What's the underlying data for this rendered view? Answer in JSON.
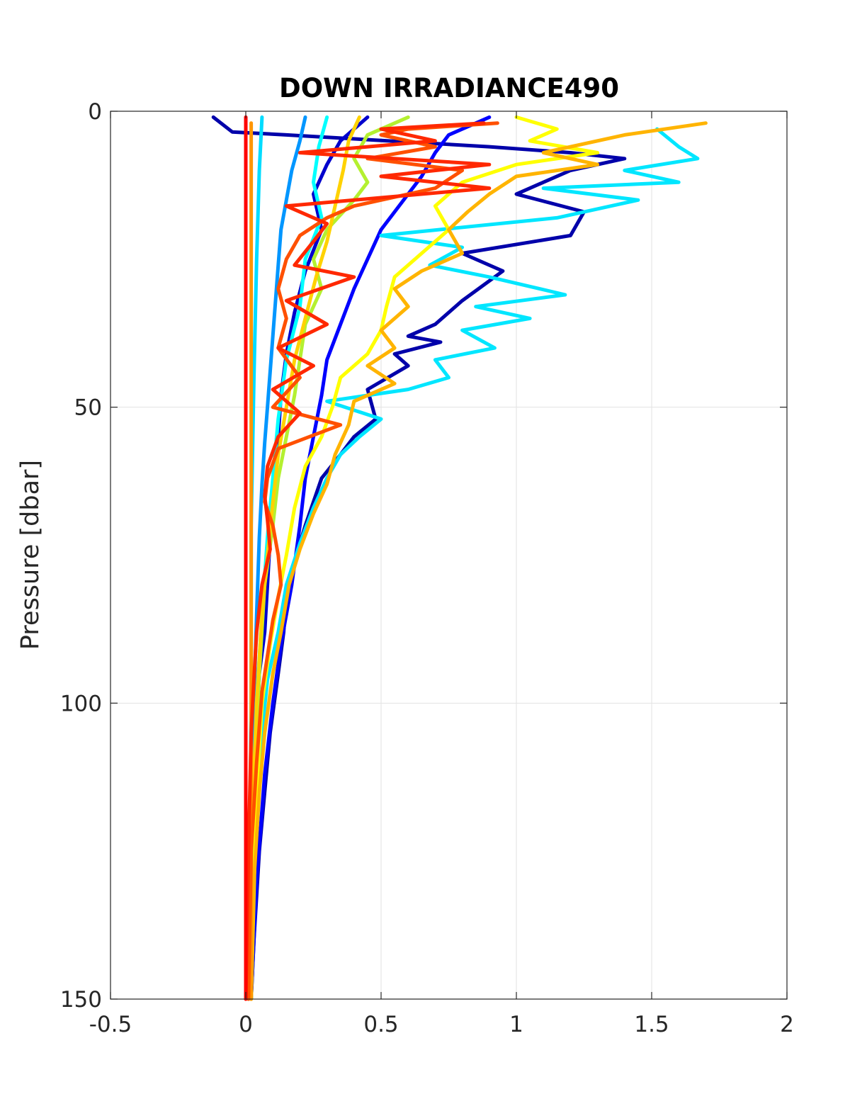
{
  "chart_data": {
    "type": "line",
    "title": "DOWN IRRADIANCE490",
    "xlabel": "",
    "ylabel": "Pressure [dbar]",
    "xlim": [
      -0.5,
      2
    ],
    "ylim": [
      0,
      150
    ],
    "y_reversed": true,
    "x_ticks": [
      "-0.5",
      "0",
      "0.5",
      "1",
      "1.5",
      "2"
    ],
    "y_ticks": [
      "0",
      "50",
      "100",
      "150"
    ],
    "grid": true,
    "series": [
      {
        "color": "#0000aa",
        "points": [
          [
            -0.12,
            1
          ],
          [
            -0.05,
            3.5
          ],
          [
            0.15,
            4
          ],
          [
            0.9,
            6
          ],
          [
            1.2,
            7
          ],
          [
            1.4,
            8
          ],
          [
            1.2,
            10
          ],
          [
            1.1,
            12
          ],
          [
            1.0,
            14
          ],
          [
            1.25,
            17
          ],
          [
            1.2,
            21
          ],
          [
            0.8,
            24
          ],
          [
            0.95,
            27
          ],
          [
            0.8,
            32
          ],
          [
            0.7,
            36
          ],
          [
            0.6,
            38
          ],
          [
            0.72,
            39
          ],
          [
            0.55,
            41
          ],
          [
            0.6,
            43
          ],
          [
            0.45,
            47
          ],
          [
            0.48,
            52
          ],
          [
            0.4,
            55
          ],
          [
            0.35,
            58
          ],
          [
            0.28,
            62
          ],
          [
            0.25,
            66
          ],
          [
            0.22,
            70
          ],
          [
            0.18,
            76
          ],
          [
            0.15,
            82
          ],
          [
            0.14,
            88
          ],
          [
            0.12,
            95
          ],
          [
            0.09,
            105
          ],
          [
            0.07,
            115
          ],
          [
            0.05,
            125
          ],
          [
            0.03,
            140
          ],
          [
            0.02,
            150
          ]
        ]
      },
      {
        "color": "#0000cd",
        "points": [
          [
            0.45,
            1
          ],
          [
            0.35,
            5
          ],
          [
            0.3,
            9
          ],
          [
            0.25,
            14
          ],
          [
            0.28,
            20
          ],
          [
            0.22,
            27
          ],
          [
            0.18,
            34
          ],
          [
            0.15,
            41
          ],
          [
            0.13,
            48
          ],
          [
            0.12,
            55
          ],
          [
            0.11,
            61
          ],
          [
            0.1,
            66
          ],
          [
            0.09,
            72
          ],
          [
            0.08,
            80
          ],
          [
            0.07,
            88
          ],
          [
            0.05,
            95
          ],
          [
            0.04,
            105
          ],
          [
            0.03,
            120
          ],
          [
            0.02,
            150
          ]
        ]
      },
      {
        "color": "#0000ff",
        "points": [
          [
            0.9,
            1
          ],
          [
            0.75,
            4
          ],
          [
            0.7,
            7
          ],
          [
            0.65,
            11
          ],
          [
            0.6,
            14
          ],
          [
            0.55,
            17
          ],
          [
            0.5,
            20
          ],
          [
            0.45,
            25
          ],
          [
            0.4,
            30
          ],
          [
            0.35,
            36
          ],
          [
            0.3,
            42
          ],
          [
            0.28,
            48
          ],
          [
            0.25,
            55
          ],
          [
            0.22,
            62
          ],
          [
            0.2,
            70
          ],
          [
            0.17,
            80
          ],
          [
            0.13,
            90
          ],
          [
            0.1,
            100
          ],
          [
            0.07,
            112
          ],
          [
            0.04,
            130
          ],
          [
            0.02,
            150
          ]
        ]
      },
      {
        "color": "#0096ff",
        "points": [
          [
            0.22,
            1
          ],
          [
            0.2,
            5
          ],
          [
            0.17,
            10
          ],
          [
            0.15,
            15
          ],
          [
            0.13,
            20
          ],
          [
            0.12,
            26
          ],
          [
            0.11,
            32
          ],
          [
            0.1,
            38
          ],
          [
            0.09,
            44
          ],
          [
            0.08,
            50
          ],
          [
            0.07,
            56
          ],
          [
            0.06,
            63
          ],
          [
            0.05,
            72
          ],
          [
            0.04,
            85
          ],
          [
            0.03,
            100
          ],
          [
            0.02,
            125
          ],
          [
            0.01,
            150
          ]
        ]
      },
      {
        "color": "#00dcff",
        "points": [
          [
            0.06,
            1
          ],
          [
            0.05,
            10
          ],
          [
            0.04,
            25
          ],
          [
            0.03,
            45
          ],
          [
            0.02,
            70
          ],
          [
            0.02,
            100
          ],
          [
            0.01,
            150
          ]
        ]
      },
      {
        "color": "#00e6ff",
        "points": [
          [
            1.52,
            3
          ],
          [
            1.6,
            6
          ],
          [
            1.67,
            8
          ],
          [
            1.4,
            10
          ],
          [
            1.6,
            12
          ],
          [
            1.1,
            13
          ],
          [
            1.45,
            15
          ],
          [
            1.15,
            18
          ],
          [
            0.5,
            21
          ],
          [
            0.8,
            23
          ],
          [
            0.68,
            26
          ],
          [
            0.9,
            28
          ],
          [
            1.18,
            31
          ],
          [
            0.85,
            33
          ],
          [
            1.05,
            35
          ],
          [
            0.8,
            37
          ],
          [
            0.92,
            40
          ],
          [
            0.7,
            42
          ],
          [
            0.75,
            45
          ],
          [
            0.6,
            47
          ],
          [
            0.3,
            49
          ],
          [
            0.5,
            52
          ],
          [
            0.42,
            55
          ],
          [
            0.35,
            58
          ],
          [
            0.3,
            62
          ],
          [
            0.25,
            67
          ],
          [
            0.2,
            73
          ],
          [
            0.15,
            80
          ],
          [
            0.12,
            88
          ],
          [
            0.08,
            96
          ],
          [
            0.06,
            105
          ],
          [
            0.04,
            115
          ],
          [
            0.03,
            130
          ],
          [
            0.02,
            150
          ]
        ]
      },
      {
        "color": "#00ffff",
        "points": [
          [
            0.3,
            1
          ],
          [
            0.27,
            6
          ],
          [
            0.25,
            12
          ],
          [
            0.28,
            18
          ],
          [
            0.22,
            25
          ],
          [
            0.2,
            33
          ],
          [
            0.15,
            42
          ],
          [
            0.12,
            52
          ],
          [
            0.1,
            62
          ],
          [
            0.08,
            72
          ],
          [
            0.06,
            85
          ],
          [
            0.04,
            100
          ],
          [
            0.03,
            120
          ],
          [
            0.02,
            150
          ]
        ]
      },
      {
        "color": "#b4f030",
        "points": [
          [
            0.6,
            1
          ],
          [
            0.45,
            4
          ],
          [
            0.4,
            8
          ],
          [
            0.45,
            12
          ],
          [
            0.4,
            15
          ],
          [
            0.3,
            20
          ],
          [
            0.25,
            25
          ],
          [
            0.28,
            30
          ],
          [
            0.22,
            36
          ],
          [
            0.2,
            42
          ],
          [
            0.18,
            48
          ],
          [
            0.15,
            55
          ],
          [
            0.12,
            62
          ],
          [
            0.1,
            70
          ],
          [
            0.07,
            80
          ],
          [
            0.05,
            95
          ],
          [
            0.03,
            115
          ],
          [
            0.02,
            150
          ]
        ]
      },
      {
        "color": "#ffff00",
        "points": [
          [
            1.0,
            1
          ],
          [
            1.15,
            3
          ],
          [
            1.05,
            5
          ],
          [
            1.3,
            7
          ],
          [
            1.0,
            9
          ],
          [
            0.8,
            12
          ],
          [
            0.7,
            16
          ],
          [
            0.75,
            20
          ],
          [
            0.65,
            24
          ],
          [
            0.55,
            28
          ],
          [
            0.52,
            33
          ],
          [
            0.5,
            37
          ],
          [
            0.45,
            41
          ],
          [
            0.35,
            45
          ],
          [
            0.32,
            50
          ],
          [
            0.28,
            55
          ],
          [
            0.22,
            60
          ],
          [
            0.18,
            67
          ],
          [
            0.15,
            75
          ],
          [
            0.12,
            82
          ],
          [
            0.09,
            90
          ],
          [
            0.06,
            100
          ],
          [
            0.04,
            115
          ],
          [
            0.02,
            150
          ]
        ]
      },
      {
        "color": "#ffd200",
        "points": [
          [
            0.42,
            1
          ],
          [
            0.38,
            5
          ],
          [
            0.36,
            10
          ],
          [
            0.33,
            16
          ],
          [
            0.3,
            22
          ],
          [
            0.26,
            28
          ],
          [
            0.22,
            35
          ],
          [
            0.18,
            42
          ],
          [
            0.15,
            50
          ],
          [
            0.12,
            58
          ],
          [
            0.1,
            66
          ],
          [
            0.08,
            75
          ],
          [
            0.06,
            85
          ],
          [
            0.04,
            100
          ],
          [
            0.02,
            125
          ],
          [
            0.01,
            150
          ]
        ]
      },
      {
        "color": "#ffb400",
        "points": [
          [
            1.7,
            2
          ],
          [
            1.4,
            4
          ],
          [
            1.1,
            7
          ],
          [
            1.3,
            9
          ],
          [
            1.0,
            11
          ],
          [
            0.9,
            14
          ],
          [
            0.82,
            17
          ],
          [
            0.75,
            20
          ],
          [
            0.8,
            24
          ],
          [
            0.65,
            27
          ],
          [
            0.55,
            30
          ],
          [
            0.6,
            33
          ],
          [
            0.5,
            37
          ],
          [
            0.55,
            40
          ],
          [
            0.45,
            43
          ],
          [
            0.55,
            46
          ],
          [
            0.4,
            49
          ],
          [
            0.38,
            53
          ],
          [
            0.33,
            58
          ],
          [
            0.3,
            63
          ],
          [
            0.25,
            68
          ],
          [
            0.2,
            74
          ],
          [
            0.16,
            80
          ],
          [
            0.13,
            88
          ],
          [
            0.1,
            95
          ],
          [
            0.07,
            105
          ],
          [
            0.05,
            115
          ],
          [
            0.03,
            130
          ],
          [
            0.02,
            150
          ]
        ]
      },
      {
        "color": "#ff9600",
        "points": [
          [
            0.02,
            2
          ],
          [
            0.02,
            20
          ],
          [
            0.02,
            60
          ],
          [
            0.02,
            100
          ],
          [
            0.02,
            150
          ]
        ]
      },
      {
        "color": "#ff5000",
        "points": [
          [
            0.93,
            2
          ],
          [
            0.6,
            3
          ],
          [
            0.5,
            4
          ],
          [
            0.7,
            6
          ],
          [
            0.45,
            8
          ],
          [
            0.8,
            10
          ],
          [
            0.7,
            13
          ],
          [
            0.4,
            16
          ],
          [
            0.3,
            18
          ],
          [
            0.2,
            21
          ],
          [
            0.15,
            25
          ],
          [
            0.12,
            30
          ],
          [
            0.15,
            35
          ],
          [
            0.12,
            40
          ],
          [
            0.2,
            45
          ],
          [
            0.1,
            50
          ],
          [
            0.35,
            53
          ],
          [
            0.12,
            57
          ],
          [
            0.08,
            62
          ],
          [
            0.07,
            66
          ],
          [
            0.1,
            70
          ],
          [
            0.12,
            75
          ],
          [
            0.13,
            80
          ],
          [
            0.1,
            86
          ],
          [
            0.08,
            92
          ],
          [
            0.06,
            98
          ],
          [
            0.05,
            104
          ],
          [
            0.04,
            110
          ],
          [
            0.02,
            125
          ],
          [
            0.01,
            150
          ]
        ]
      },
      {
        "color": "#ff2800",
        "points": [
          [
            0.88,
            2
          ],
          [
            0.5,
            3
          ],
          [
            0.7,
            5
          ],
          [
            0.2,
            7
          ],
          [
            0.9,
            9
          ],
          [
            0.5,
            11
          ],
          [
            0.9,
            13
          ],
          [
            0.15,
            16
          ],
          [
            0.3,
            19
          ],
          [
            0.25,
            22
          ],
          [
            0.18,
            26
          ],
          [
            0.4,
            28
          ],
          [
            0.15,
            32
          ],
          [
            0.3,
            36
          ],
          [
            0.12,
            40
          ],
          [
            0.25,
            43
          ],
          [
            0.1,
            47
          ],
          [
            0.2,
            51
          ],
          [
            0.12,
            55
          ],
          [
            0.08,
            60
          ],
          [
            0.07,
            65
          ],
          [
            0.08,
            69
          ],
          [
            0.09,
            74
          ],
          [
            0.06,
            80
          ],
          [
            0.04,
            88
          ],
          [
            0.03,
            96
          ],
          [
            0.02,
            105
          ],
          [
            0.01,
            125
          ],
          [
            0.0,
            150
          ]
        ]
      },
      {
        "color": "#ff0000",
        "points": [
          [
            0.0,
            1
          ],
          [
            0.0,
            50
          ],
          [
            0.0,
            100
          ],
          [
            0.0,
            150
          ]
        ]
      }
    ]
  }
}
